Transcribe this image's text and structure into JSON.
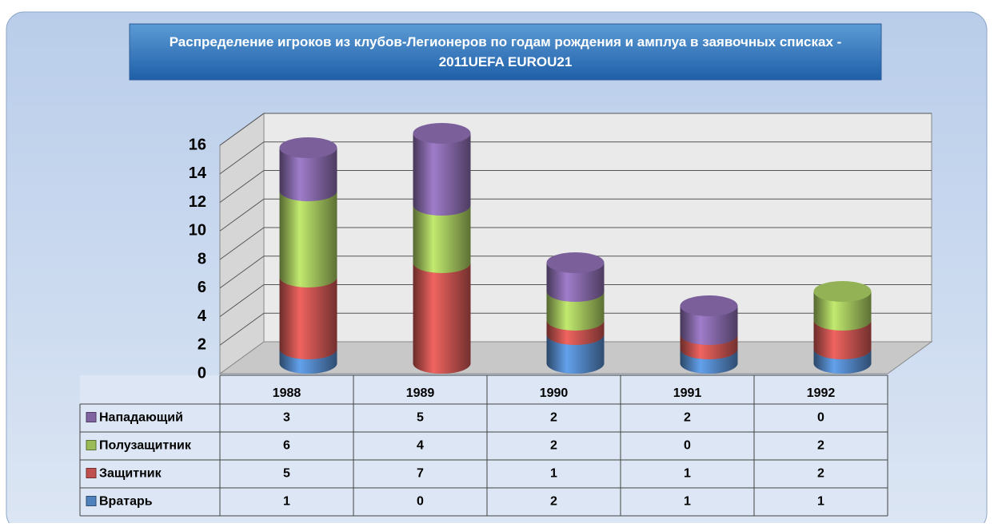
{
  "chart_data": {
    "type": "bar",
    "title": "Распределение игроков из  клубов-Легионеров по годам рождения и амплуа в заявочных списках - 2011UEFA EUROU21",
    "categories": [
      "1988",
      "1989",
      "1990",
      "1991",
      "1992"
    ],
    "series": [
      {
        "name": "Вратарь",
        "color": "#4f81bd",
        "values": [
          1,
          0,
          2,
          1,
          1
        ]
      },
      {
        "name": "Защитник",
        "color": "#c0504d",
        "values": [
          5,
          7,
          1,
          1,
          2
        ]
      },
      {
        "name": "Полузащитник",
        "color": "#9bbb59",
        "values": [
          6,
          4,
          2,
          0,
          2
        ]
      },
      {
        "name": "Нападающий",
        "color": "#8064a2",
        "values": [
          3,
          5,
          2,
          2,
          0
        ]
      }
    ],
    "stacked": true,
    "ylim": [
      0,
      16
    ],
    "yticks": [
      0,
      2,
      4,
      6,
      8,
      10,
      12,
      14,
      16
    ],
    "grid": true
  }
}
